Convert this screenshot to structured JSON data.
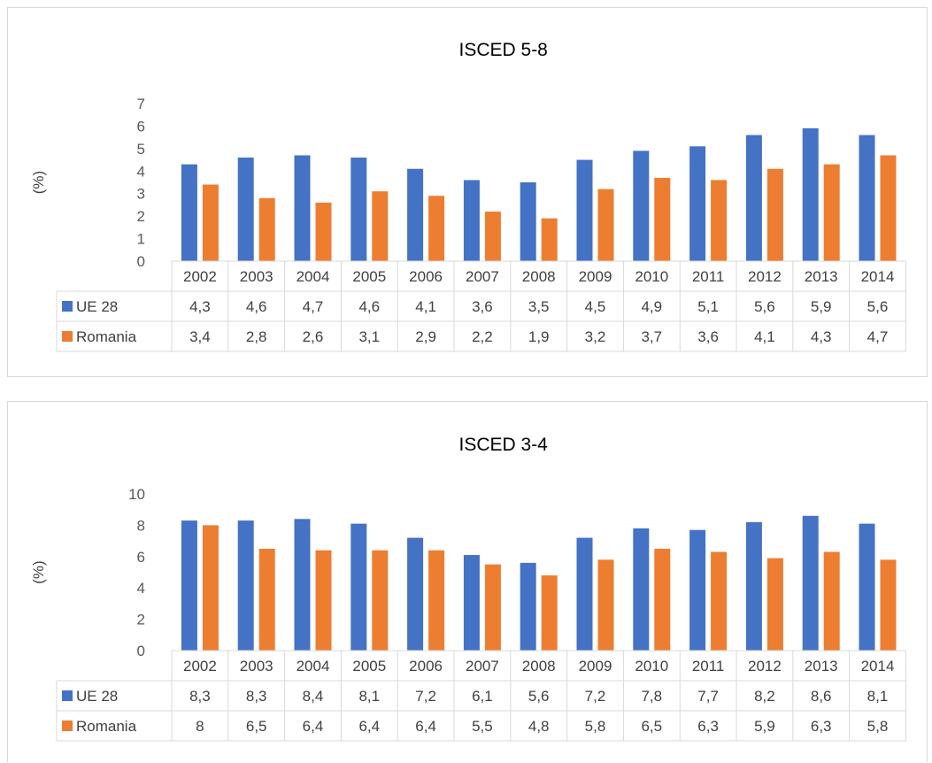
{
  "chart_data": [
    {
      "type": "bar",
      "title": "ISCED 5-8",
      "ylabel": "(%)",
      "xlabel": "",
      "ylim": [
        0,
        7
      ],
      "yticks": [
        0,
        1,
        2,
        3,
        4,
        5,
        6,
        7
      ],
      "categories": [
        "2002",
        "2003",
        "2004",
        "2005",
        "2006",
        "2007",
        "2008",
        "2009",
        "2010",
        "2011",
        "2012",
        "2013",
        "2014"
      ],
      "series": [
        {
          "name": "UE 28",
          "color": "#4472c4",
          "values": [
            4.3,
            4.6,
            4.7,
            4.6,
            4.1,
            3.6,
            3.5,
            4.5,
            4.9,
            5.1,
            5.6,
            5.9,
            5.6
          ],
          "labels": [
            "4,3",
            "4,6",
            "4,7",
            "4,6",
            "4,1",
            "3,6",
            "3,5",
            "4,5",
            "4,9",
            "5,1",
            "5,6",
            "5,9",
            "5,6"
          ]
        },
        {
          "name": "Romania",
          "color": "#ed7d31",
          "values": [
            3.4,
            2.8,
            2.6,
            3.1,
            2.9,
            2.2,
            1.9,
            3.2,
            3.7,
            3.6,
            4.1,
            4.3,
            4.7
          ],
          "labels": [
            "3,4",
            "2,8",
            "2,6",
            "3,1",
            "2,9",
            "2,2",
            "1,9",
            "3,2",
            "3,7",
            "3,6",
            "4,1",
            "4,3",
            "4,7"
          ]
        }
      ],
      "legend": "data-table",
      "grid": false
    },
    {
      "type": "bar",
      "title": "ISCED 3-4",
      "ylabel": "(%)",
      "xlabel": "",
      "ylim": [
        0,
        10
      ],
      "yticks": [
        0,
        2,
        4,
        6,
        8,
        10
      ],
      "categories": [
        "2002",
        "2003",
        "2004",
        "2005",
        "2006",
        "2007",
        "2008",
        "2009",
        "2010",
        "2011",
        "2012",
        "2013",
        "2014"
      ],
      "series": [
        {
          "name": "UE 28",
          "color": "#4472c4",
          "values": [
            8.3,
            8.3,
            8.4,
            8.1,
            7.2,
            6.1,
            5.6,
            7.2,
            7.8,
            7.7,
            8.2,
            8.6,
            8.1
          ],
          "labels": [
            "8,3",
            "8,3",
            "8,4",
            "8,1",
            "7,2",
            "6,1",
            "5,6",
            "7,2",
            "7,8",
            "7,7",
            "8,2",
            "8,6",
            "8,1"
          ]
        },
        {
          "name": "Romania",
          "color": "#ed7d31",
          "values": [
            8,
            6.5,
            6.4,
            6.4,
            6.4,
            5.5,
            4.8,
            5.8,
            6.5,
            6.3,
            5.9,
            6.3,
            5.8
          ],
          "labels": [
            "8",
            "6,5",
            "6,4",
            "6,4",
            "6,4",
            "5,5",
            "4,8",
            "5,8",
            "6,5",
            "6,3",
            "5,9",
            "6,3",
            "5,8"
          ]
        }
      ],
      "legend": "data-table",
      "grid": false
    }
  ]
}
